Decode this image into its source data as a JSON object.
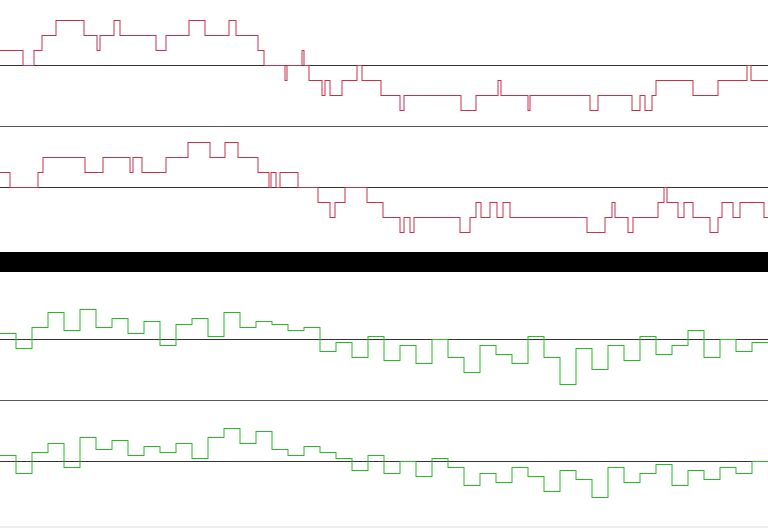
{
  "chart_data": [
    {
      "type": "step",
      "color": "#c4314b",
      "xlim": [
        0,
        768
      ],
      "ylim": [
        -1,
        1
      ],
      "x": [
        0,
        23,
        34,
        42,
        56,
        84,
        97,
        100,
        114,
        120,
        156,
        166,
        189,
        205,
        229,
        236,
        258,
        264,
        285,
        287,
        302,
        304,
        309,
        322,
        325,
        330,
        342,
        357,
        362,
        381,
        400,
        404,
        461,
        476,
        498,
        501,
        528,
        530,
        590,
        598,
        632,
        640,
        645,
        652,
        656,
        693,
        718,
        747,
        751
      ],
      "values": [
        0.25,
        0,
        0.25,
        0.5,
        0.75,
        0.5,
        0.25,
        0.5,
        0.75,
        0.5,
        0.25,
        0.5,
        0.75,
        0.5,
        0.75,
        0.5,
        0.25,
        0,
        -0.25,
        0,
        0.25,
        0,
        -0.25,
        -0.5,
        -0.25,
        -0.5,
        -0.25,
        0,
        -0.25,
        -0.5,
        -0.75,
        -0.5,
        -0.75,
        -0.5,
        -0.25,
        -0.5,
        -0.75,
        -0.5,
        -0.75,
        -0.5,
        -0.75,
        -0.5,
        -0.75,
        -0.5,
        -0.25,
        -0.5,
        -0.25,
        0,
        -0.25
      ]
    },
    {
      "type": "step",
      "color": "#c4314b",
      "xlim": [
        0,
        768
      ],
      "ylim": [
        -1,
        1
      ],
      "x": [
        0,
        10,
        38,
        43,
        85,
        103,
        130,
        133,
        142,
        166,
        188,
        210,
        225,
        238,
        258,
        269,
        271,
        276,
        280,
        298,
        318,
        330,
        335,
        345,
        367,
        383,
        400,
        404,
        410,
        414,
        460,
        470,
        476,
        481,
        490,
        497,
        503,
        510,
        587,
        605,
        612,
        615,
        628,
        633,
        658,
        664,
        667,
        678,
        684,
        693,
        710,
        718,
        722,
        733,
        740,
        764
      ],
      "values": [
        0.25,
        0,
        0.25,
        0.5,
        0.25,
        0.5,
        0.25,
        0.5,
        0.25,
        0.5,
        0.75,
        0.5,
        0.75,
        0.5,
        0.25,
        0,
        0.25,
        0,
        0.25,
        0,
        -0.25,
        -0.5,
        -0.25,
        0,
        -0.25,
        -0.5,
        -0.75,
        -0.5,
        -0.75,
        -0.5,
        -0.75,
        -0.5,
        -0.25,
        -0.5,
        -0.25,
        -0.5,
        -0.25,
        -0.5,
        -0.75,
        -0.5,
        -0.25,
        -0.5,
        -0.75,
        -0.5,
        -0.25,
        0,
        -0.25,
        -0.5,
        -0.25,
        -0.5,
        -0.75,
        -0.5,
        -0.25,
        -0.5,
        -0.25,
        -0.5
      ]
    },
    {
      "type": "step",
      "color": "#2ab82a",
      "xlim": [
        0,
        768
      ],
      "ylim": [
        -1,
        1
      ],
      "x": [
        0,
        16,
        32,
        48,
        64,
        80,
        96,
        112,
        128,
        144,
        160,
        176,
        192,
        208,
        224,
        240,
        256,
        272,
        288,
        304,
        320,
        336,
        352,
        368,
        384,
        400,
        416,
        432,
        448,
        464,
        480,
        496,
        512,
        528,
        544,
        560,
        576,
        592,
        608,
        624,
        640,
        656,
        672,
        688,
        704,
        720,
        736,
        752
      ],
      "values": [
        0.1,
        -0.15,
        0.2,
        0.45,
        0.15,
        0.5,
        0.2,
        0.35,
        0.1,
        0.3,
        -0.1,
        0.25,
        0.35,
        0.05,
        0.45,
        0.2,
        0.3,
        0.25,
        0.15,
        0.2,
        -0.2,
        -0.05,
        -0.3,
        0.05,
        -0.35,
        -0.1,
        -0.4,
        0,
        -0.3,
        -0.55,
        -0.1,
        -0.25,
        -0.4,
        0.05,
        -0.3,
        -0.75,
        -0.15,
        -0.5,
        -0.1,
        -0.35,
        0.05,
        -0.25,
        -0.1,
        0.15,
        -0.3,
        0,
        -0.2,
        -0.05
      ]
    },
    {
      "type": "step",
      "color": "#2ab82a",
      "xlim": [
        0,
        768
      ],
      "ylim": [
        -1,
        1
      ],
      "x": [
        0,
        16,
        32,
        48,
        64,
        80,
        96,
        112,
        128,
        144,
        160,
        176,
        192,
        208,
        224,
        240,
        256,
        272,
        288,
        304,
        320,
        336,
        352,
        368,
        384,
        400,
        416,
        432,
        448,
        464,
        480,
        496,
        512,
        528,
        544,
        560,
        576,
        592,
        608,
        624,
        640,
        656,
        672,
        688,
        704,
        720,
        736,
        752
      ],
      "values": [
        0.1,
        -0.2,
        0.15,
        0.3,
        -0.1,
        0.4,
        0.2,
        0.35,
        0.1,
        0.25,
        0.15,
        0.3,
        0.05,
        0.4,
        0.55,
        0.3,
        0.5,
        0.2,
        0.1,
        0.25,
        0.15,
        0.05,
        -0.15,
        0.1,
        -0.2,
        0,
        -0.25,
        0.05,
        -0.1,
        -0.4,
        -0.2,
        -0.35,
        -0.1,
        -0.25,
        -0.5,
        -0.15,
        -0.3,
        -0.6,
        -0.1,
        -0.35,
        -0.2,
        -0.05,
        -0.4,
        -0.15,
        -0.3,
        -0.1,
        -0.2,
        0
      ]
    }
  ]
}
